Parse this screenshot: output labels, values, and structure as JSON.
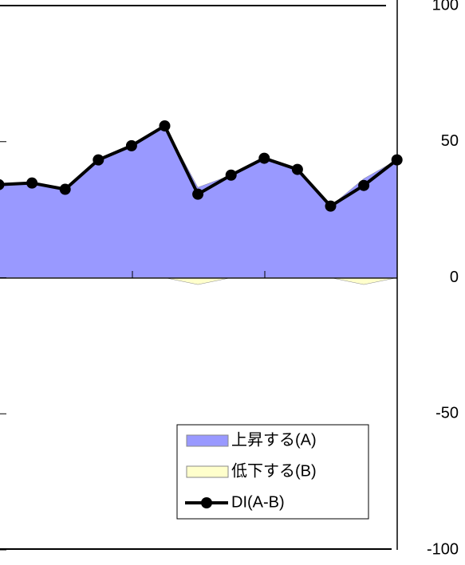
{
  "chart_data": {
    "type": "area",
    "series": [
      {
        "name": "上昇する(A)",
        "type": "area",
        "color": "#9999ff",
        "values": [
          34.2,
          34.8,
          32.5,
          43.3,
          48.5,
          55.8,
          33.2,
          37.7,
          43.9,
          39.8,
          26.3,
          36.4,
          43.3
        ]
      },
      {
        "name": "低下する(B)",
        "type": "area",
        "color": "#ffffcc",
        "values": [
          0,
          0,
          0,
          0,
          0,
          0,
          -2.5,
          0,
          0,
          0,
          0,
          -2.5,
          0
        ]
      },
      {
        "name": "DI(A-B)",
        "type": "line",
        "color": "#000000",
        "values": [
          34.2,
          34.8,
          32.5,
          43.3,
          48.5,
          55.8,
          30.7,
          37.7,
          43.9,
          39.8,
          26.3,
          33.9,
          43.3
        ]
      }
    ],
    "ylim": [
      -100,
      100
    ],
    "yticks": [
      -100,
      -50,
      0,
      50,
      100
    ],
    "legend": "lower-right"
  }
}
